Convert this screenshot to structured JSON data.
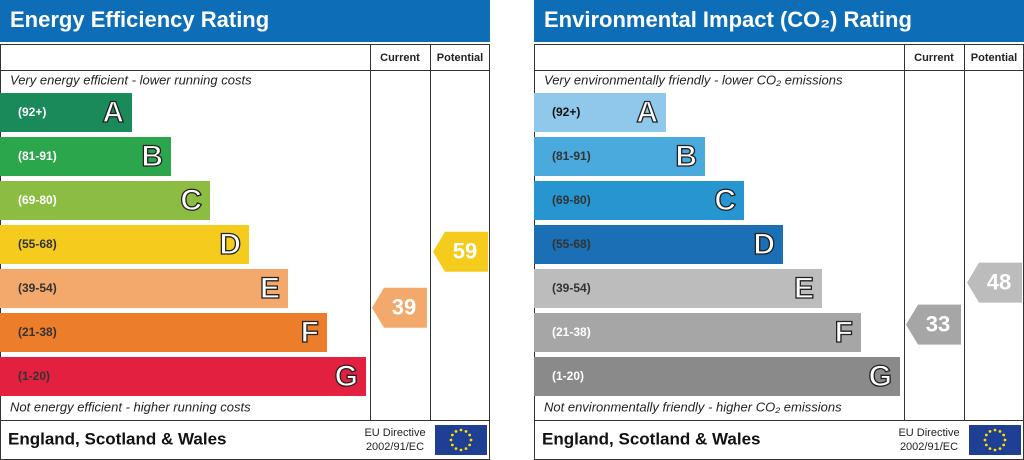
{
  "panels": [
    {
      "title": "Energy Efficiency Rating",
      "columns": [
        "Current",
        "Potential"
      ],
      "top_note": "Very energy efficient - lower running costs",
      "bands": [
        {
          "range": "(92+)",
          "letter": "A",
          "color": "#1a8a5a",
          "text_color": "#ffffff"
        },
        {
          "range": "(81-91)",
          "letter": "B",
          "color": "#2ca64c",
          "text_color": "#ffffff"
        },
        {
          "range": "(69-80)",
          "letter": "C",
          "color": "#8cbd42",
          "text_color": "#ffffff"
        },
        {
          "range": "(55-68)",
          "letter": "D",
          "color": "#f5cc1e",
          "text_color": "#333333"
        },
        {
          "range": "(39-54)",
          "letter": "E",
          "color": "#f2a96b",
          "text_color": "#333333"
        },
        {
          "range": "(21-38)",
          "letter": "F",
          "color": "#ec7d2a",
          "text_color": "#333333"
        },
        {
          "range": "(1-20)",
          "letter": "G",
          "color": "#e32040",
          "text_color": "#333333"
        }
      ],
      "bottom_note": "Not energy efficient - higher running costs",
      "current": 39,
      "current_color": "#f2a96b",
      "potential": 59,
      "potential_color": "#f5cc1e",
      "footer": "England, Scotland & Wales",
      "directive": [
        "EU Directive",
        "2002/91/EC"
      ]
    },
    {
      "title": "Environmental Impact (CO₂) Rating",
      "columns": [
        "Current",
        "Potential"
      ],
      "top_note": "Very environmentally friendly - lower CO₂ emissions",
      "bands": [
        {
          "range": "(92+)",
          "letter": "A",
          "color": "#8fc8ea",
          "text_color": "#111111"
        },
        {
          "range": "(81-91)",
          "letter": "B",
          "color": "#4aa9dd",
          "text_color": "#333333"
        },
        {
          "range": "(69-80)",
          "letter": "C",
          "color": "#2695d0",
          "text_color": "#333333"
        },
        {
          "range": "(55-68)",
          "letter": "D",
          "color": "#1a6fb5",
          "text_color": "#333333"
        },
        {
          "range": "(39-54)",
          "letter": "E",
          "color": "#bcbcbc",
          "text_color": "#333333"
        },
        {
          "range": "(21-38)",
          "letter": "F",
          "color": "#a6a6a6",
          "text_color": "#ffffff"
        },
        {
          "range": "(1-20)",
          "letter": "G",
          "color": "#8a8a8a",
          "text_color": "#ffffff"
        }
      ],
      "bottom_note": "Not environmentally friendly - higher CO₂ emissions",
      "current": 33,
      "current_color": "#a6a6a6",
      "potential": 48,
      "potential_color": "#bcbcbc",
      "footer": "England, Scotland & Wales",
      "directive": [
        "EU Directive",
        "2002/91/EC"
      ]
    }
  ]
}
